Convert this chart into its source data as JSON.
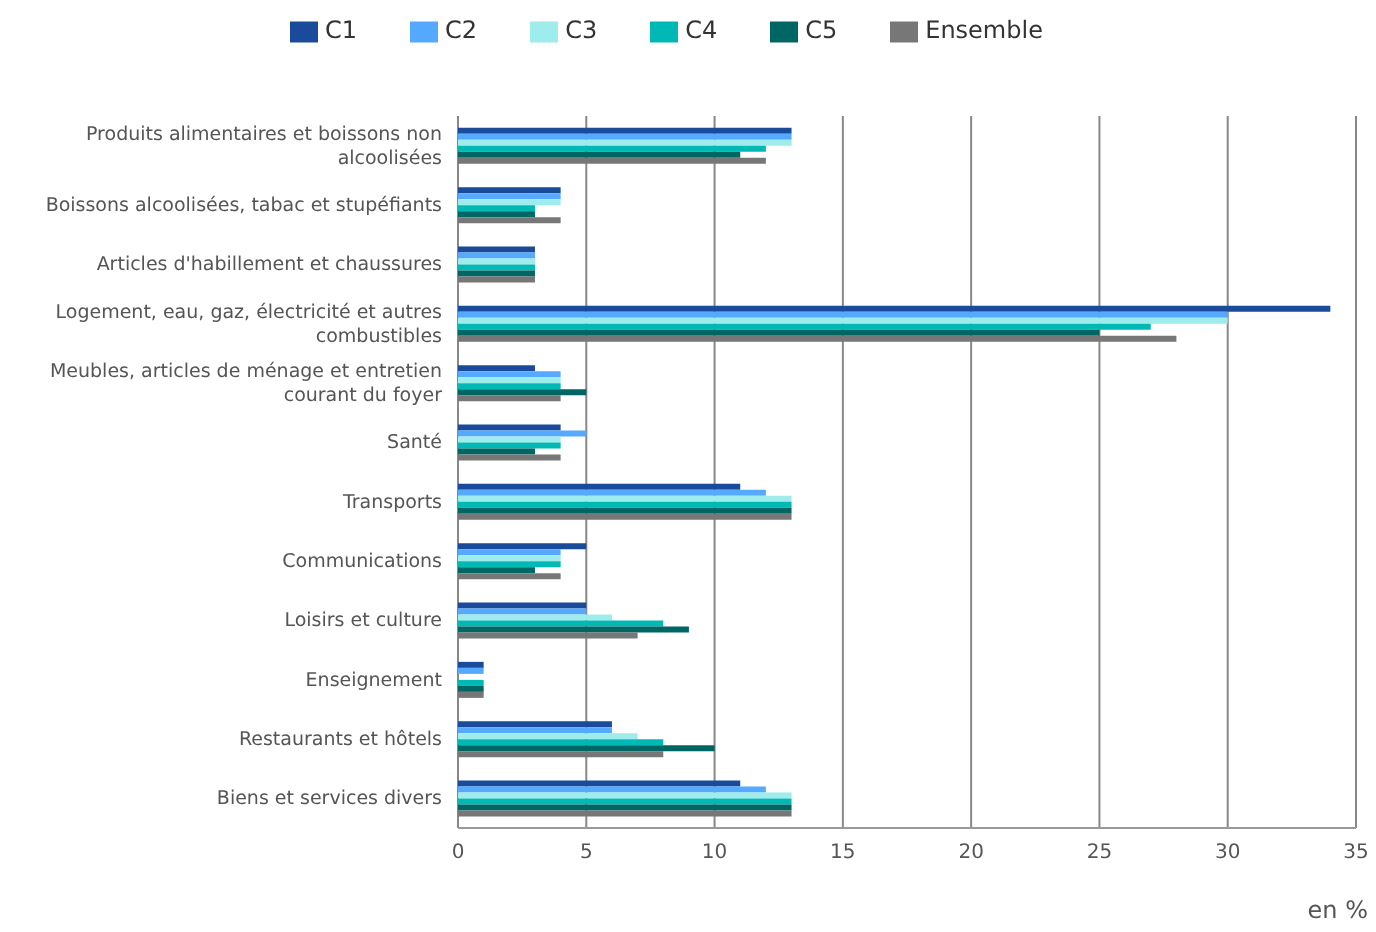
{
  "chart_data": {
    "type": "bar",
    "orientation": "horizontal",
    "xlabel": "en %",
    "categories": [
      "Produits alimentaires et boissons non alcoolisées",
      "Boissons alcoolisées, tabac et stupéfiants",
      "Articles d'habillement et chaussures",
      "Logement, eau, gaz, électricité et autres combustibles",
      "Meubles, articles de ménage et entretien courant du foyer",
      "Santé",
      "Transports",
      "Communications",
      "Loisirs et culture",
      "Enseignement",
      "Restaurants et hôtels",
      "Biens et services divers"
    ],
    "series": [
      {
        "name": "C1",
        "color": "#1a4a9a",
        "values": [
          13,
          4,
          3,
          34,
          3,
          4,
          11,
          5,
          5,
          1,
          6,
          11
        ]
      },
      {
        "name": "C2",
        "color": "#55aaff",
        "values": [
          13,
          4,
          3,
          30,
          4,
          5,
          12,
          4,
          5,
          1,
          6,
          12
        ]
      },
      {
        "name": "C3",
        "color": "#9eecec",
        "values": [
          13,
          4,
          3,
          30,
          4,
          4,
          13,
          4,
          6,
          0,
          7,
          13
        ]
      },
      {
        "name": "C4",
        "color": "#00b8b4",
        "values": [
          12,
          3,
          3,
          27,
          4,
          4,
          13,
          4,
          8,
          1,
          8,
          13
        ]
      },
      {
        "name": "C5",
        "color": "#006663",
        "values": [
          11,
          3,
          3,
          25,
          5,
          3,
          13,
          3,
          9,
          1,
          10,
          13
        ]
      },
      {
        "name": "Ensemble",
        "color": "#777777",
        "values": [
          12,
          4,
          3,
          28,
          4,
          4,
          13,
          4,
          7,
          1,
          8,
          13
        ]
      }
    ],
    "xlim": [
      0,
      35
    ],
    "xticks": [
      0,
      5,
      10,
      15,
      20,
      25,
      30,
      35
    ],
    "grid": "x",
    "legend": "top"
  }
}
